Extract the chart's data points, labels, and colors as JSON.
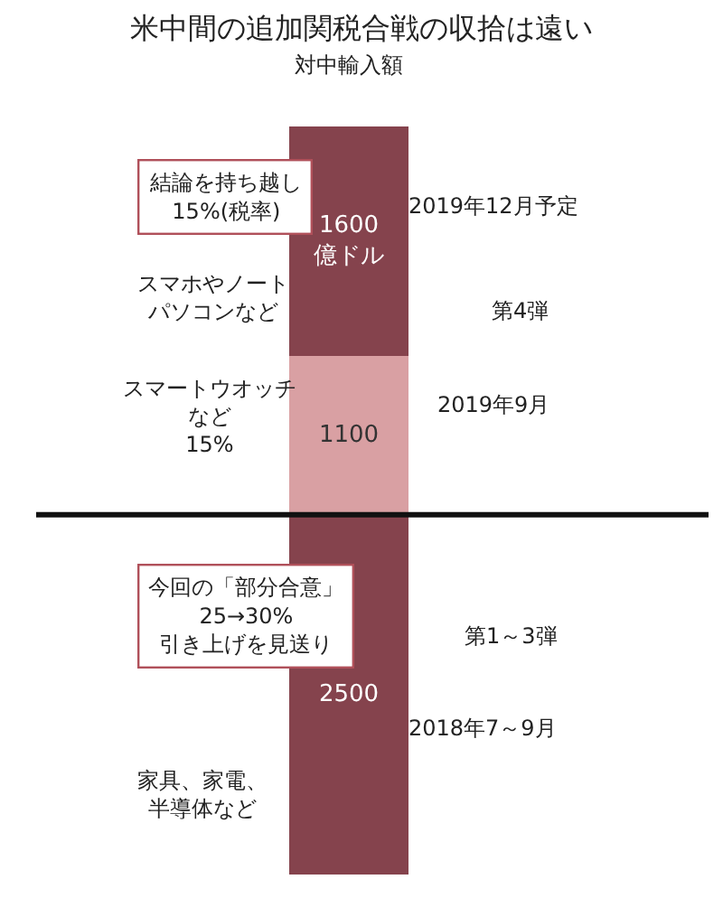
{
  "chart_data": {
    "type": "bar",
    "stacked": true,
    "title": "米中間の追加関税合戦の収拾は遠い",
    "subtitle": "対中輸入額",
    "categories": [
      null
    ],
    "series": [
      {
        "color": "#85434d",
        "values": [
          2500
        ],
        "value_labels": [
          "2500"
        ]
      },
      {
        "color": "#d9a0a3",
        "values": [
          1100
        ],
        "value_labels": [
          "1100"
        ]
      },
      {
        "color": "#85434d",
        "values": [
          1600
        ],
        "value_labels": [
          "1600\n億ドル"
        ]
      }
    ],
    "ref_lines": [
      {
        "axis": "y",
        "value": 2500,
        "color": "#111111"
      }
    ],
    "tick_labels": false,
    "annotations": [
      "結論を持ち越し\n15%(税率)",
      "スマホやノートパソコンなど",
      "スマートウオッチなど15%",
      "今回の「部分合意」\n25→30%\n引き上げを見送り",
      "家具、家電、半導体など",
      "2019年12月予定",
      "2019年9月",
      "2018年7～9月",
      "第4弾",
      "第1～3弾"
    ]
  }
}
